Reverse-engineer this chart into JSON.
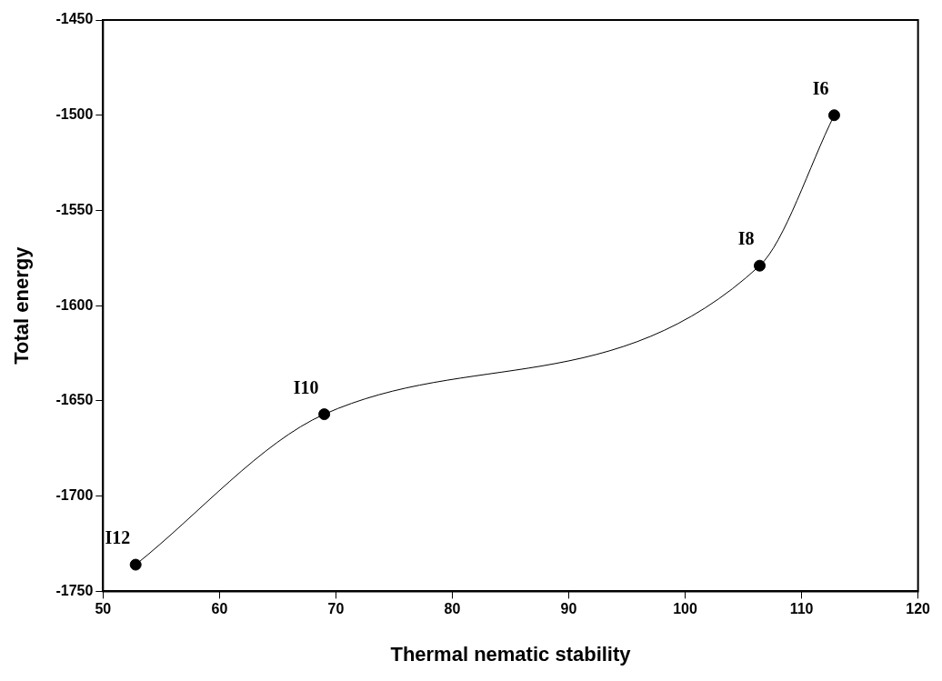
{
  "chart_data": {
    "type": "line",
    "xlabel": "Thermal nematic stability",
    "ylabel": "Total energy",
    "x": [
      52.8,
      69,
      106.4,
      112.8
    ],
    "series": [
      {
        "color": "#000000",
        "values": [
          -1736,
          -1657,
          -1579,
          -1500
        ]
      }
    ],
    "xlim": [
      50,
      120
    ],
    "xticks": [
      50,
      60,
      70,
      80,
      90,
      100,
      110,
      120
    ],
    "ylim": [
      -1750,
      -1450
    ],
    "yticks": [
      -1750,
      -1700,
      -1650,
      -1600,
      -1550,
      -1500,
      -1450
    ],
    "marker": "circle",
    "line_style": "solid",
    "grid": false,
    "legend": false,
    "annotations": [
      {
        "text": "I12",
        "x": 52.8,
        "y": -1736
      },
      {
        "text": "I10",
        "x": 69,
        "y": -1657
      },
      {
        "text": "I8",
        "x": 106.4,
        "y": -1579
      },
      {
        "text": "I6",
        "x": 112.8,
        "y": -1500
      }
    ]
  }
}
